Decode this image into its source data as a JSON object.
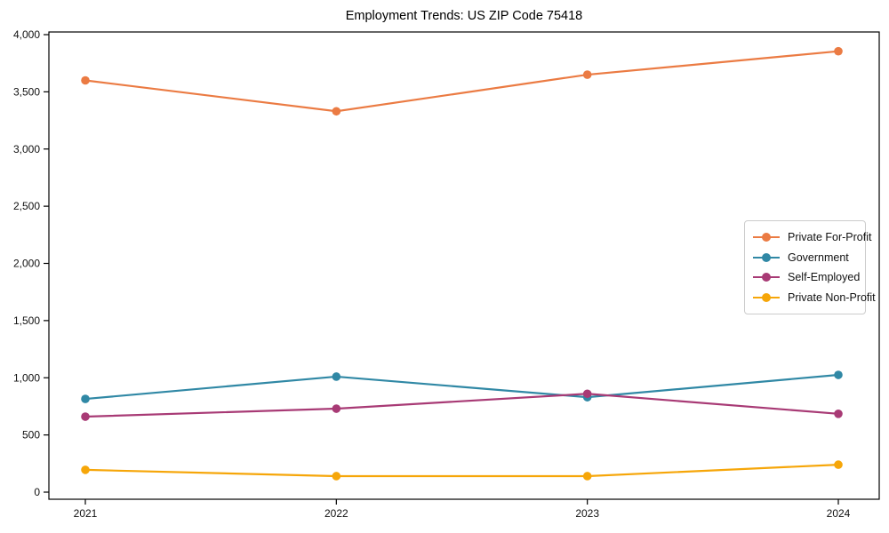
{
  "figure": {
    "background": "#ffffff",
    "axis_color": "#000000",
    "tick_label_color": "#111111"
  },
  "chart_data": {
    "type": "line",
    "title": "Employment Trends: US ZIP Code 75418",
    "xlabel": "",
    "ylabel": "",
    "categories": [
      "2021",
      "2022",
      "2023",
      "2024"
    ],
    "series": [
      {
        "name": "Private For-Profit",
        "color": "#EB7B43",
        "values": [
          3600,
          3330,
          3650,
          3855
        ]
      },
      {
        "name": "Government",
        "color": "#3088A5",
        "values": [
          815,
          1010,
          830,
          1025
        ]
      },
      {
        "name": "Self-Employed",
        "color": "#A83A75",
        "values": [
          660,
          730,
          860,
          685
        ]
      },
      {
        "name": "Private Non-Profit",
        "color": "#F6A609",
        "values": [
          195,
          140,
          140,
          240
        ]
      }
    ],
    "ylim": [
      0,
      4000
    ],
    "y_ticks": [
      0,
      500,
      1000,
      1500,
      2000,
      2500,
      3000,
      3500,
      4000
    ],
    "y_tick_labels": [
      "0",
      "500",
      "1,000",
      "1,500",
      "2,000",
      "2,500",
      "3,000",
      "3,500",
      "4,000"
    ],
    "grid": false,
    "legend_position": "center-right",
    "marker": "circle"
  }
}
